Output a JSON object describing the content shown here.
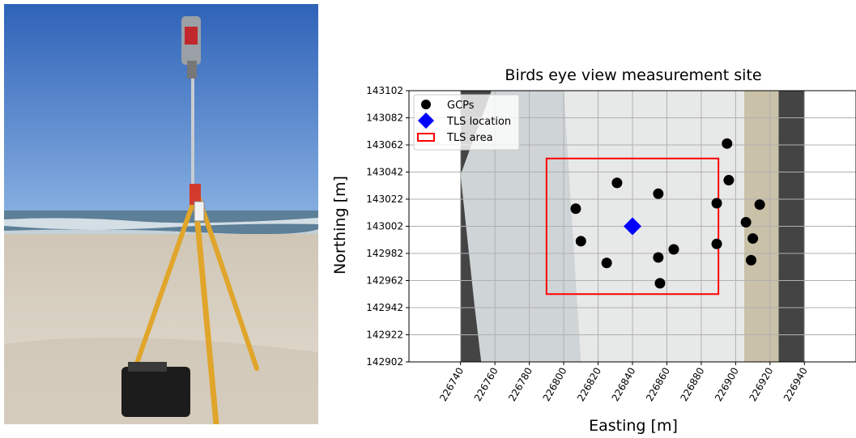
{
  "photo": {
    "subject": "Terrestrial laser scanner on a tripod on a beach",
    "colors": {
      "sky": "#3f77c9",
      "sea": "#5b7f9c",
      "sand": "#d9d3c8",
      "tripod": "#e0a52a",
      "case": "#1c1c1c"
    }
  },
  "chart_data": {
    "type": "scatter",
    "title": "Birds eye view measurement site",
    "xlabel": "Easting [m]",
    "ylabel": "Northing [m]",
    "xlim": [
      226710,
      226970
    ],
    "ylim": [
      142902,
      143102
    ],
    "xticks": [
      226740,
      226760,
      226780,
      226800,
      226820,
      226840,
      226860,
      226880,
      226900,
      226920,
      226940
    ],
    "yticks": [
      142902,
      142922,
      142942,
      142962,
      142982,
      143002,
      143022,
      143042,
      143062,
      143082,
      143102
    ],
    "grid": true,
    "legend_position": "top-left",
    "background_image": {
      "description": "Orthophoto of the beach site with dark no-data margins",
      "extent_x": [
        226740,
        226940
      ],
      "extent_y": [
        142902,
        143102
      ]
    },
    "series": [
      {
        "name": "GCPs",
        "marker": "circle",
        "color": "#000000",
        "points": [
          [
            226895,
            143063
          ],
          [
            226831,
            143034
          ],
          [
            226896,
            143036
          ],
          [
            226855,
            143026
          ],
          [
            226889,
            143019
          ],
          [
            226807,
            143015
          ],
          [
            226914,
            143018
          ],
          [
            226906,
            143005
          ],
          [
            226910,
            142993
          ],
          [
            226810,
            142991
          ],
          [
            226889,
            142989
          ],
          [
            226864,
            142985
          ],
          [
            226855,
            142979
          ],
          [
            226825,
            142975
          ],
          [
            226909,
            142977
          ],
          [
            226856,
            142960
          ]
        ]
      },
      {
        "name": "TLS location",
        "marker": "diamond",
        "color": "#0000ff",
        "points": [
          [
            226840,
            143002
          ]
        ]
      },
      {
        "name": "TLS area",
        "marker": "rectangle",
        "color": "#ff0000",
        "rect": {
          "x0": 226790,
          "x1": 226890,
          "y0": 142952,
          "y1": 143052
        }
      }
    ]
  }
}
